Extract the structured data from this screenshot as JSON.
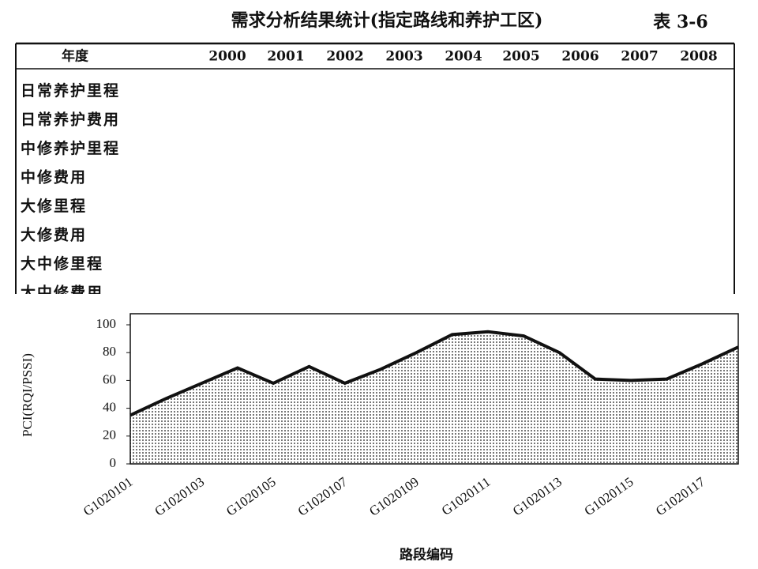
{
  "table": {
    "title": "需求分析结果统计(指定路线和养护工区)",
    "label": "表 3-6",
    "header": [
      "年度",
      "2000",
      "2001",
      "2002",
      "2003",
      "2004",
      "2005",
      "2006",
      "2007",
      "2008"
    ],
    "rows": [
      "日常养护里程",
      "日常养护费用",
      "中修养护里程",
      "中修费用",
      "大修里程",
      "大修费用",
      "大中修里程",
      "大中修费用"
    ]
  },
  "chart_data": {
    "type": "area",
    "y_label": "PCI(RQI/PSSI)",
    "x_label": "路段编码",
    "categories": [
      "G1020101",
      null,
      "G1020103",
      null,
      "G1020105",
      null,
      "G1020107",
      null,
      "G1020109",
      null,
      "G1020111",
      null,
      "G1020113",
      null,
      "G1020115",
      null,
      "G1020117",
      null
    ],
    "values": [
      35,
      47,
      58,
      69,
      58,
      70,
      58,
      68,
      80,
      93,
      95,
      92,
      80,
      61,
      60,
      61,
      72,
      84
    ],
    "ylim": [
      0,
      100
    ],
    "yticks": [
      0,
      20,
      40,
      60,
      80,
      100
    ],
    "color": "#111"
  }
}
